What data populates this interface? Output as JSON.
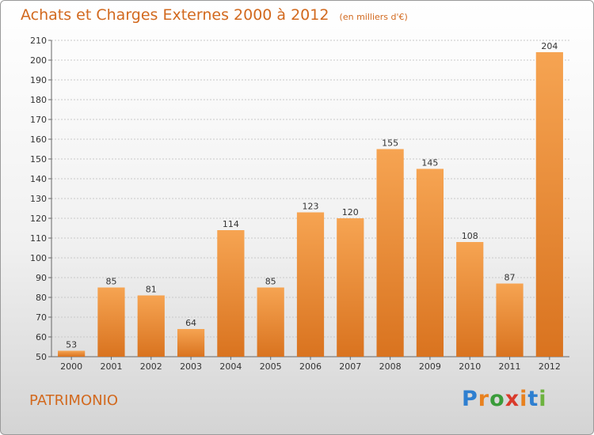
{
  "header": {
    "title": "Achats et Charges Externes 2000 à 2012",
    "unit": "(en milliers d'€)"
  },
  "footer": {
    "place": "PATRIMONIO",
    "brand": [
      "P",
      "r",
      "o",
      "x",
      "i",
      "t",
      "i"
    ],
    "brand_colors": [
      "#2e7fd0",
      "#e8811f",
      "#3a9c3a",
      "#d93a2b",
      "#e8811f",
      "#2e7fd0",
      "#6db33f"
    ]
  },
  "colors": {
    "bar_top": "#f6a452",
    "bar_bottom": "#d9731f",
    "title": "#d2691e"
  },
  "chart_data": {
    "type": "bar",
    "title": "Achats et Charges Externes 2000 à 2012",
    "categories": [
      "2000",
      "2001",
      "2002",
      "2003",
      "2004",
      "2005",
      "2006",
      "2007",
      "2008",
      "2009",
      "2010",
      "2011",
      "2012"
    ],
    "values": [
      53,
      85,
      81,
      64,
      114,
      85,
      123,
      120,
      155,
      145,
      108,
      87,
      204
    ],
    "ylim": [
      50,
      210
    ],
    "yticks": [
      50,
      60,
      70,
      80,
      90,
      100,
      110,
      120,
      130,
      140,
      150,
      160,
      170,
      180,
      190,
      200,
      210
    ],
    "grid": true
  }
}
